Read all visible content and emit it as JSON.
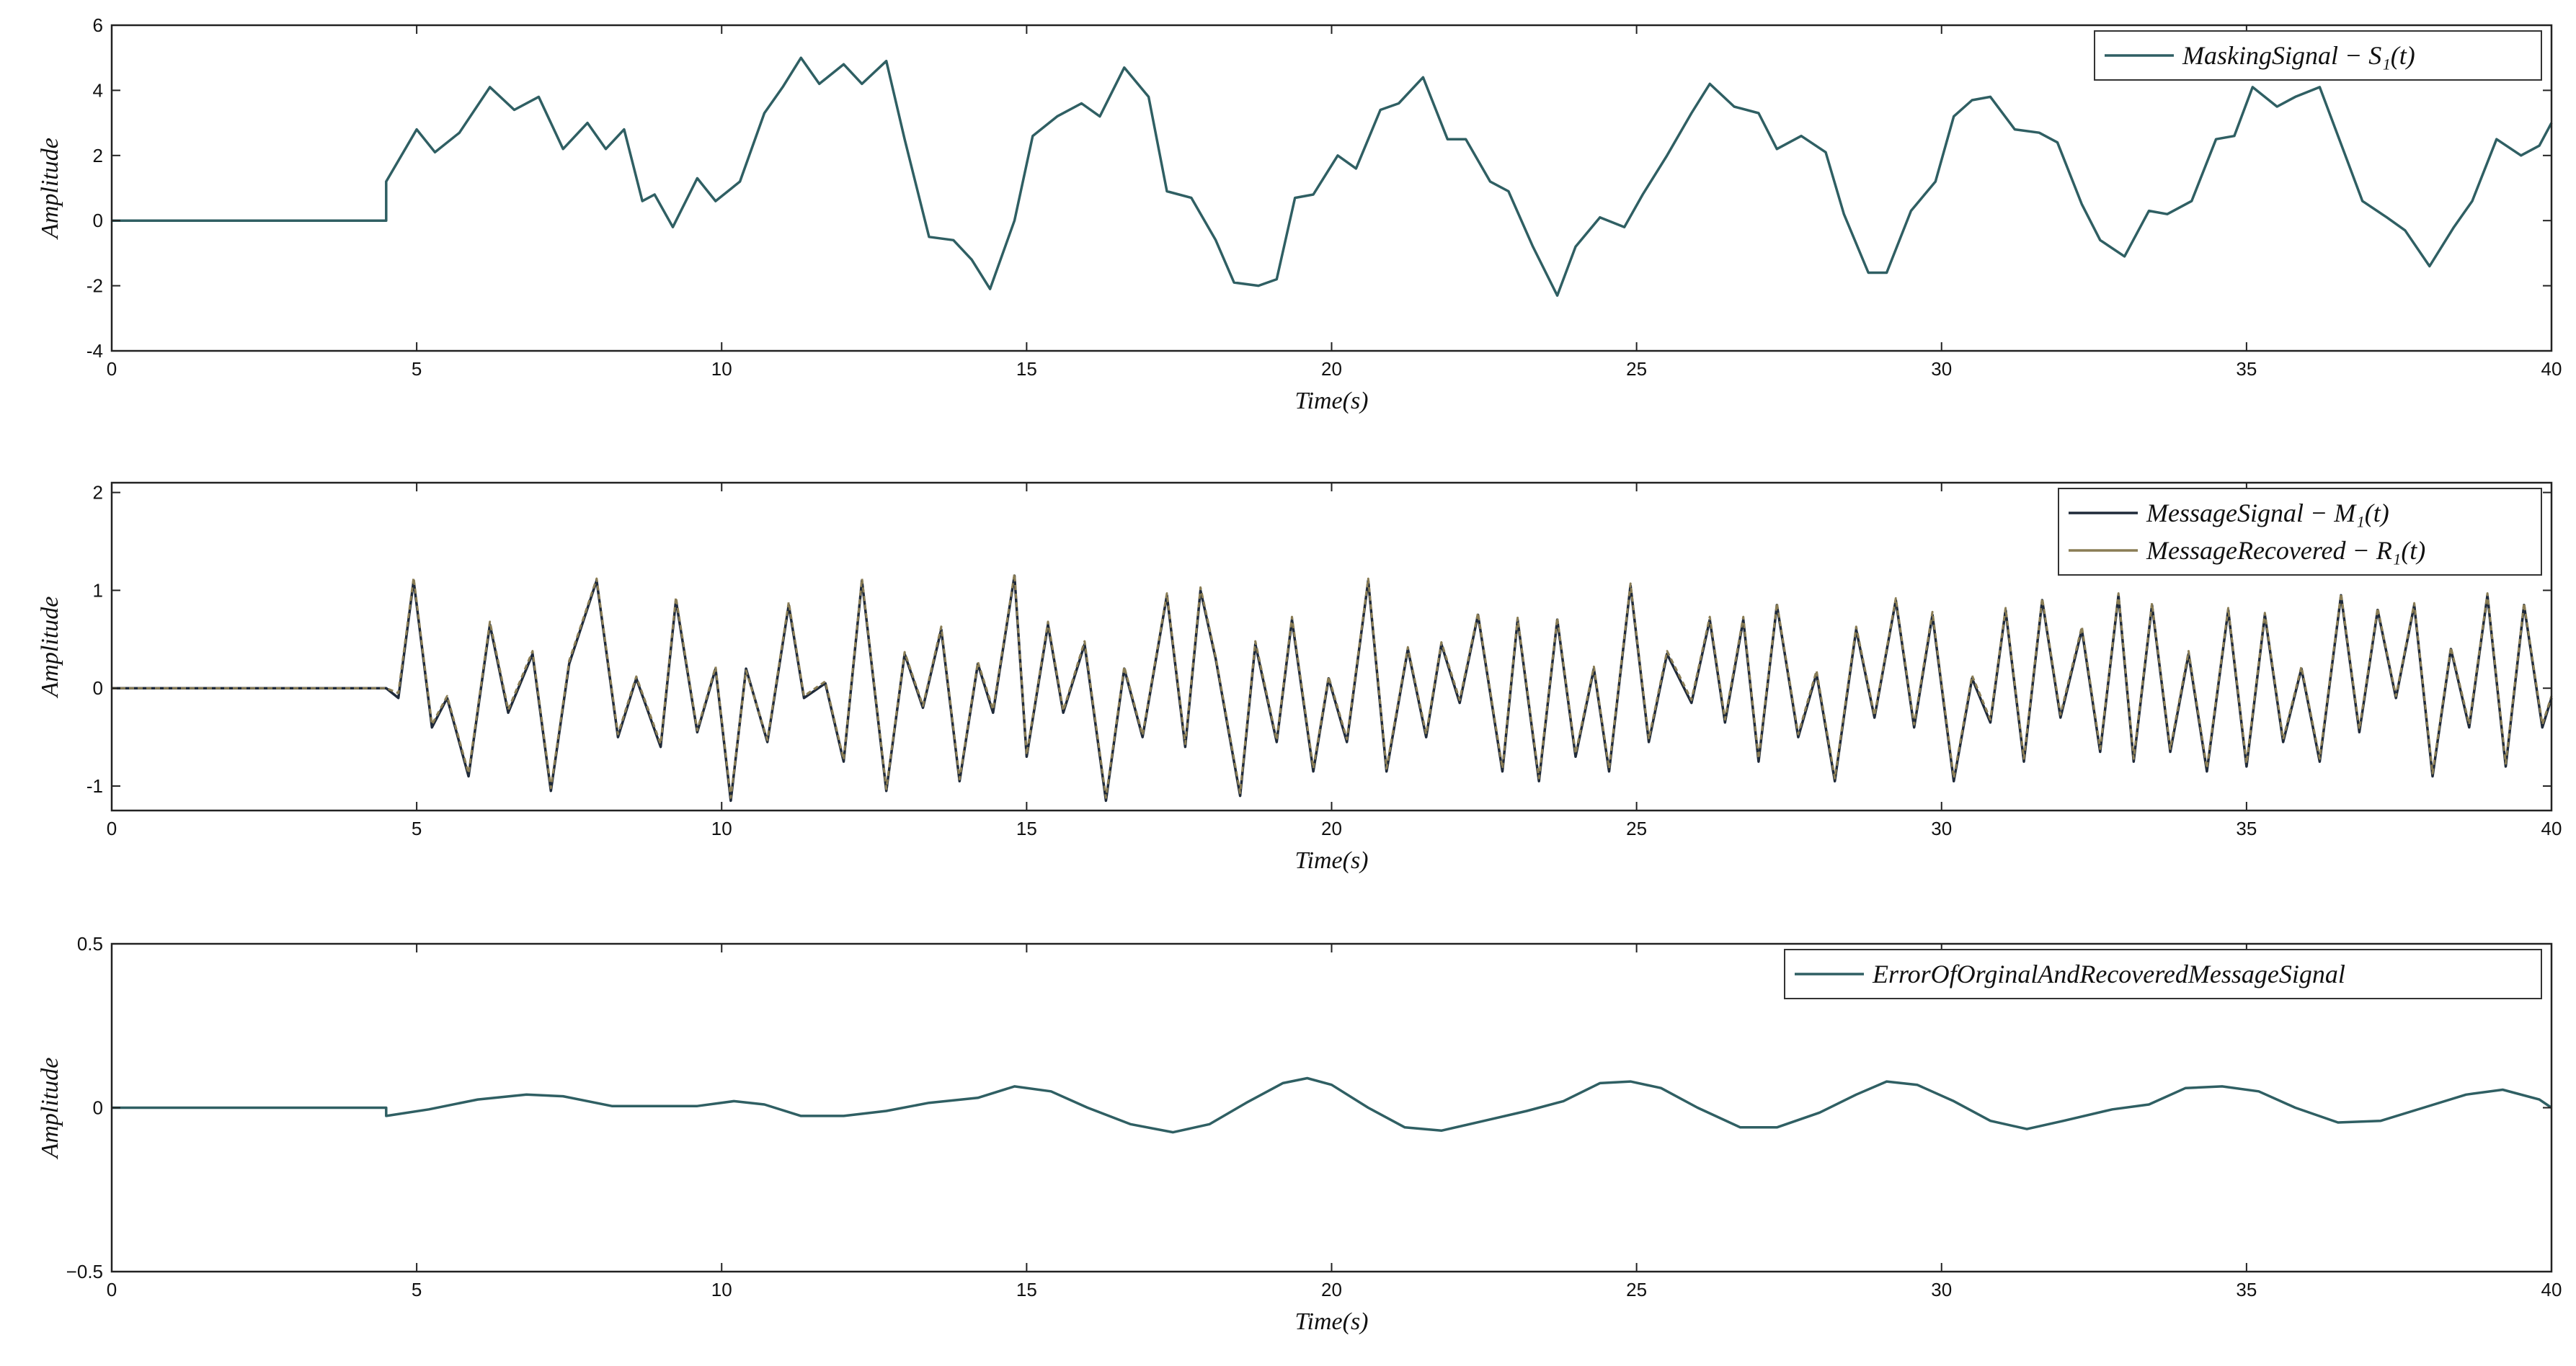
{
  "chart_data": [
    {
      "type": "line",
      "title": "",
      "xlabel": "Time(s)",
      "ylabel": "Amplitude",
      "xlim": [
        0,
        40
      ],
      "ylim": [
        -4,
        6
      ],
      "xticks": [
        0,
        5,
        10,
        15,
        20,
        25,
        30,
        35,
        40
      ],
      "yticks": [
        -4,
        -2,
        0,
        2,
        4,
        6
      ],
      "ytick_labels": [
        "-4",
        "-2",
        "0",
        "2",
        "4",
        "6"
      ],
      "legend_position": "top-right",
      "grid": false,
      "series": [
        {
          "name": "MaskingSignal − S₁(t)",
          "color": "#2f5f63",
          "x": [
            0,
            4.5,
            4.5,
            5.0,
            5.3,
            5.7,
            6.2,
            6.6,
            7.0,
            7.4,
            7.8,
            8.1,
            8.4,
            8.7,
            8.9,
            9.2,
            9.6,
            9.9,
            10.3,
            10.7,
            11.0,
            11.3,
            11.6,
            12.0,
            12.3,
            12.7,
            13.0,
            13.4,
            13.8,
            14.1,
            14.4,
            14.8,
            15.1,
            15.5,
            15.9,
            16.2,
            16.6,
            17.0,
            17.3,
            17.7,
            18.1,
            18.4,
            18.8,
            19.1,
            19.4,
            19.7,
            20.1,
            20.4,
            20.8,
            21.1,
            21.5,
            21.9,
            22.2,
            22.6,
            22.9,
            23.3,
            23.7,
            24.0,
            24.4,
            24.8,
            25.1,
            25.5,
            25.9,
            26.2,
            26.6,
            27.0,
            27.3,
            27.7,
            28.1,
            28.4,
            28.8,
            29.1,
            29.5,
            29.9,
            30.2,
            30.5,
            30.8,
            31.2,
            31.6,
            31.9,
            32.3,
            32.6,
            33.0,
            33.4,
            33.7,
            34.1,
            34.5,
            34.8,
            35.1,
            35.5,
            35.8,
            36.2,
            36.6,
            36.9,
            37.3,
            37.6,
            38.0,
            38.4,
            38.7,
            39.1,
            39.5,
            39.8,
            40.0
          ],
          "y": [
            0,
            0,
            1.2,
            2.8,
            2.1,
            2.7,
            4.1,
            3.4,
            3.8,
            2.2,
            3.0,
            2.2,
            2.8,
            0.6,
            0.8,
            -0.2,
            1.3,
            0.6,
            1.2,
            3.3,
            4.1,
            5.0,
            4.2,
            4.8,
            4.2,
            4.9,
            2.5,
            -0.5,
            -0.6,
            -1.2,
            -2.1,
            0,
            2.6,
            3.2,
            3.6,
            3.2,
            4.7,
            3.8,
            0.9,
            0.7,
            -0.6,
            -1.9,
            -2.0,
            -1.8,
            0.7,
            0.8,
            2.0,
            1.6,
            3.4,
            3.6,
            4.4,
            2.5,
            2.5,
            1.2,
            0.9,
            -0.8,
            -2.3,
            -0.8,
            0.1,
            -0.2,
            0.8,
            2.0,
            3.3,
            4.2,
            3.5,
            3.3,
            2.2,
            2.6,
            2.1,
            0.2,
            -1.6,
            -1.6,
            0.3,
            1.2,
            3.2,
            3.7,
            3.8,
            2.8,
            2.7,
            2.4,
            0.5,
            -0.6,
            -1.1,
            0.3,
            0.2,
            0.6,
            2.5,
            2.6,
            4.1,
            3.5,
            3.8,
            4.1,
            2.1,
            0.6,
            0.1,
            -0.3,
            -1.4,
            -0.2,
            0.6,
            2.5,
            2.0,
            2.3,
            3.0
          ]
        }
      ]
    },
    {
      "type": "line",
      "title": "",
      "xlabel": "Time(s)",
      "ylabel": "Amplitude",
      "xlim": [
        0,
        40
      ],
      "ylim": [
        -1.25,
        2.1
      ],
      "xticks": [
        0,
        5,
        10,
        15,
        20,
        25,
        30,
        35,
        40
      ],
      "yticks": [
        -1,
        0,
        1,
        2
      ],
      "ytick_labels": [
        "-1",
        "0",
        "1",
        "2"
      ],
      "legend_position": "top-right",
      "grid": false,
      "series": [
        {
          "name": "MessageSignal − M₁(t)",
          "color": "#1f2a3a",
          "x": [
            0,
            4.5,
            4.7,
            4.95,
            5.25,
            5.5,
            5.85,
            6.2,
            6.5,
            6.9,
            7.2,
            7.5,
            7.95,
            8.3,
            8.6,
            9.0,
            9.25,
            9.6,
            9.9,
            10.15,
            10.4,
            10.75,
            11.1,
            11.35,
            11.7,
            12.0,
            12.3,
            12.7,
            13.0,
            13.3,
            13.6,
            13.9,
            14.2,
            14.45,
            14.8,
            15.0,
            15.35,
            15.6,
            15.95,
            16.3,
            16.6,
            16.9,
            17.3,
            17.6,
            17.85,
            18.1,
            18.5,
            18.75,
            19.1,
            19.35,
            19.7,
            19.95,
            20.25,
            20.6,
            20.9,
            21.25,
            21.55,
            21.8,
            22.1,
            22.4,
            22.8,
            23.05,
            23.4,
            23.7,
            24.0,
            24.3,
            24.55,
            24.9,
            25.2,
            25.5,
            25.9,
            26.2,
            26.45,
            26.75,
            27.0,
            27.3,
            27.65,
            27.95,
            28.25,
            28.6,
            28.9,
            29.25,
            29.55,
            29.85,
            30.2,
            30.5,
            30.8,
            31.05,
            31.35,
            31.65,
            31.95,
            32.3,
            32.6,
            32.9,
            33.15,
            33.45,
            33.75,
            34.05,
            34.35,
            34.7,
            35.0,
            35.3,
            35.6,
            35.9,
            36.2,
            36.55,
            36.85,
            37.15,
            37.45,
            37.75,
            38.05,
            38.35,
            38.65,
            38.95,
            39.25,
            39.55,
            39.85,
            40.0
          ],
          "y": [
            0,
            0,
            -0.1,
            1.1,
            -0.4,
            -0.1,
            -0.9,
            0.65,
            -0.25,
            0.35,
            -1.05,
            0.25,
            1.1,
            -0.5,
            0.1,
            -0.6,
            0.9,
            -0.45,
            0.2,
            -1.15,
            0.2,
            -0.55,
            0.85,
            -0.1,
            0.05,
            -0.75,
            1.1,
            -1.05,
            0.35,
            -0.2,
            0.6,
            -0.95,
            0.25,
            -0.25,
            1.15,
            -0.7,
            0.65,
            -0.25,
            0.45,
            -1.15,
            0.2,
            -0.5,
            0.95,
            -0.6,
            1.0,
            0.3,
            -1.1,
            0.45,
            -0.55,
            0.7,
            -0.85,
            0.1,
            -0.55,
            1.1,
            -0.85,
            0.4,
            -0.5,
            0.45,
            -0.15,
            0.75,
            -0.85,
            0.7,
            -0.95,
            0.7,
            -0.7,
            0.2,
            -0.85,
            1.05,
            -0.55,
            0.35,
            -0.15,
            0.7,
            -0.35,
            0.7,
            -0.75,
            0.85,
            -0.5,
            0.15,
            -0.95,
            0.6,
            -0.3,
            0.9,
            -0.4,
            0.75,
            -0.95,
            0.1,
            -0.35,
            0.8,
            -0.75,
            0.9,
            -0.3,
            0.6,
            -0.65,
            0.95,
            -0.75,
            0.85,
            -0.65,
            0.35,
            -0.85,
            0.8,
            -0.8,
            0.75,
            -0.55,
            0.2,
            -0.75,
            0.95,
            -0.45,
            0.8,
            -0.1,
            0.85,
            -0.9,
            0.4,
            -0.4,
            0.95,
            -0.8,
            0.85,
            -0.4,
            -0.1
          ]
        },
        {
          "name": "MessageRecovered − R₁(t)",
          "color": "#8a7d55",
          "x": [
            0,
            4.5,
            4.7,
            4.95,
            5.25,
            5.5,
            5.85,
            6.2,
            6.5,
            6.9,
            7.2,
            7.5,
            7.95,
            8.3,
            8.6,
            9.0,
            9.25,
            9.6,
            9.9,
            10.15,
            10.4,
            10.75,
            11.1,
            11.35,
            11.7,
            12.0,
            12.3,
            12.7,
            13.0,
            13.3,
            13.6,
            13.9,
            14.2,
            14.45,
            14.8,
            15.0,
            15.35,
            15.6,
            15.95,
            16.3,
            16.6,
            16.9,
            17.3,
            17.6,
            17.85,
            18.1,
            18.5,
            18.75,
            19.1,
            19.35,
            19.7,
            19.95,
            20.25,
            20.6,
            20.9,
            21.25,
            21.55,
            21.8,
            22.1,
            22.4,
            22.8,
            23.05,
            23.4,
            23.7,
            24.0,
            24.3,
            24.55,
            24.9,
            25.2,
            25.5,
            25.9,
            26.2,
            26.45,
            26.75,
            27.0,
            27.3,
            27.65,
            27.95,
            28.25,
            28.6,
            28.9,
            29.25,
            29.55,
            29.85,
            30.2,
            30.5,
            30.8,
            31.05,
            31.35,
            31.65,
            31.95,
            32.3,
            32.6,
            32.9,
            33.15,
            33.45,
            33.75,
            34.05,
            34.35,
            34.7,
            35.0,
            35.3,
            35.6,
            35.9,
            36.2,
            36.55,
            36.85,
            37.15,
            37.45,
            37.75,
            38.05,
            38.35,
            38.65,
            38.95,
            39.25,
            39.55,
            39.85,
            40.0
          ],
          "y": [
            0,
            0,
            -0.05,
            1.13,
            -0.37,
            -0.08,
            -0.87,
            0.68,
            -0.22,
            0.38,
            -1.02,
            0.28,
            1.12,
            -0.47,
            0.12,
            -0.57,
            0.93,
            -0.43,
            0.22,
            -1.12,
            0.18,
            -0.53,
            0.88,
            -0.08,
            0.07,
            -0.73,
            1.12,
            -1.03,
            0.37,
            -0.18,
            0.63,
            -0.93,
            0.27,
            -0.22,
            1.17,
            -0.68,
            0.68,
            -0.23,
            0.48,
            -1.12,
            0.22,
            -0.48,
            0.97,
            -0.57,
            1.03,
            0.32,
            -1.07,
            0.48,
            -0.53,
            0.73,
            -0.82,
            0.12,
            -0.52,
            1.12,
            -0.82,
            0.42,
            -0.47,
            0.47,
            -0.12,
            0.77,
            -0.82,
            0.72,
            -0.92,
            0.72,
            -0.67,
            0.22,
            -0.82,
            1.07,
            -0.52,
            0.38,
            -0.12,
            0.73,
            -0.32,
            0.73,
            -0.72,
            0.87,
            -0.47,
            0.18,
            -0.92,
            0.63,
            -0.28,
            0.92,
            -0.37,
            0.78,
            -0.92,
            0.13,
            -0.32,
            0.82,
            -0.72,
            0.92,
            -0.27,
            0.63,
            -0.62,
            0.97,
            -0.72,
            0.87,
            -0.62,
            0.38,
            -0.82,
            0.82,
            -0.77,
            0.77,
            -0.52,
            0.22,
            -0.72,
            0.97,
            -0.42,
            0.82,
            -0.08,
            0.87,
            -0.87,
            0.42,
            -0.37,
            0.97,
            -0.77,
            0.87,
            -0.37,
            -0.08
          ]
        }
      ]
    },
    {
      "type": "line",
      "title": "",
      "xlabel": "Time(s)",
      "ylabel": "Amplitude",
      "xlim": [
        0,
        40
      ],
      "ylim": [
        -0.5,
        0.5
      ],
      "xticks": [
        0,
        5,
        10,
        15,
        20,
        25,
        30,
        35,
        40
      ],
      "yticks": [
        -0.5,
        0,
        0.5
      ],
      "ytick_labels": [
        "−0.5",
        "0",
        "0.5"
      ],
      "legend_position": "top-right",
      "grid": false,
      "series": [
        {
          "name": "ErrorOfOrginalAndRecoveredMessageSignal",
          "color": "#2f5f63",
          "x": [
            0,
            4.5,
            4.5,
            5.2,
            6.0,
            6.8,
            7.4,
            8.2,
            9.0,
            9.6,
            10.2,
            10.7,
            11.3,
            12.0,
            12.7,
            13.4,
            14.2,
            14.8,
            15.4,
            16.0,
            16.7,
            17.4,
            18.0,
            18.6,
            19.2,
            19.6,
            20.0,
            20.6,
            21.2,
            21.8,
            22.5,
            23.2,
            23.8,
            24.4,
            24.9,
            25.4,
            26.0,
            26.7,
            27.3,
            28.0,
            28.6,
            29.1,
            29.6,
            30.2,
            30.8,
            31.4,
            32.0,
            32.8,
            33.4,
            34.0,
            34.6,
            35.2,
            35.8,
            36.5,
            37.2,
            37.9,
            38.6,
            39.2,
            39.8,
            40.0
          ],
          "y": [
            0,
            0,
            -0.025,
            -0.005,
            0.025,
            0.04,
            0.035,
            0.005,
            0.005,
            0.005,
            0.02,
            0.01,
            -0.025,
            -0.025,
            -0.01,
            0.015,
            0.03,
            0.065,
            0.05,
            0.0,
            -0.05,
            -0.075,
            -0.05,
            0.015,
            0.075,
            0.09,
            0.07,
            0.0,
            -0.06,
            -0.07,
            -0.04,
            -0.01,
            0.02,
            0.075,
            0.08,
            0.06,
            0.0,
            -0.06,
            -0.06,
            -0.015,
            0.04,
            0.08,
            0.07,
            0.02,
            -0.04,
            -0.065,
            -0.04,
            -0.005,
            0.01,
            0.06,
            0.065,
            0.05,
            0.0,
            -0.045,
            -0.04,
            0.0,
            0.04,
            0.055,
            0.025,
            0.0
          ]
        }
      ]
    }
  ]
}
